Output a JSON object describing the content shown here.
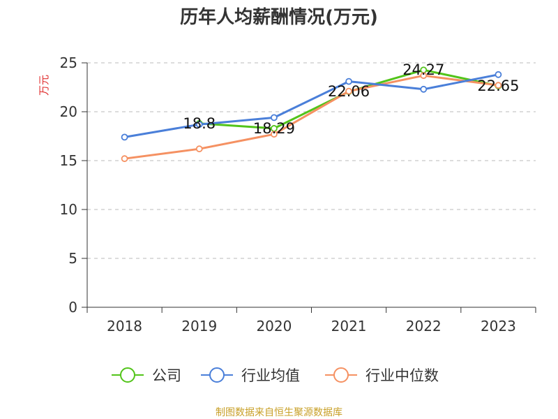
{
  "chart_data": {
    "type": "line",
    "title": "历年人均薪酬情况(万元)",
    "ylabel": "万元",
    "xlabel": "",
    "categories": [
      "2018",
      "2019",
      "2020",
      "2021",
      "2022",
      "2023"
    ],
    "ylim": [
      0,
      25
    ],
    "yticks": [
      0,
      5,
      10,
      15,
      20,
      25
    ],
    "grid": true,
    "legend_position": "bottom",
    "series": [
      {
        "name": "公司",
        "color": "#52c41a",
        "values": [
          null,
          18.8,
          18.29,
          22.06,
          24.27,
          22.65
        ]
      },
      {
        "name": "行业均值",
        "color": "#4a7fd9",
        "values": [
          17.4,
          18.7,
          19.4,
          23.1,
          22.3,
          23.8
        ]
      },
      {
        "name": "行业中位数",
        "color": "#f59162",
        "values": [
          15.2,
          16.2,
          17.7,
          22.1,
          23.7,
          22.7
        ]
      }
    ],
    "data_labels": [
      {
        "series": 0,
        "index": 1,
        "text": "18.8"
      },
      {
        "series": 0,
        "index": 2,
        "text": "18.29"
      },
      {
        "series": 0,
        "index": 3,
        "text": "22.06"
      },
      {
        "series": 0,
        "index": 4,
        "text": "24.27"
      },
      {
        "series": 0,
        "index": 5,
        "text": "22.65"
      }
    ]
  },
  "source": "制图数据来自恒生聚源数据库"
}
